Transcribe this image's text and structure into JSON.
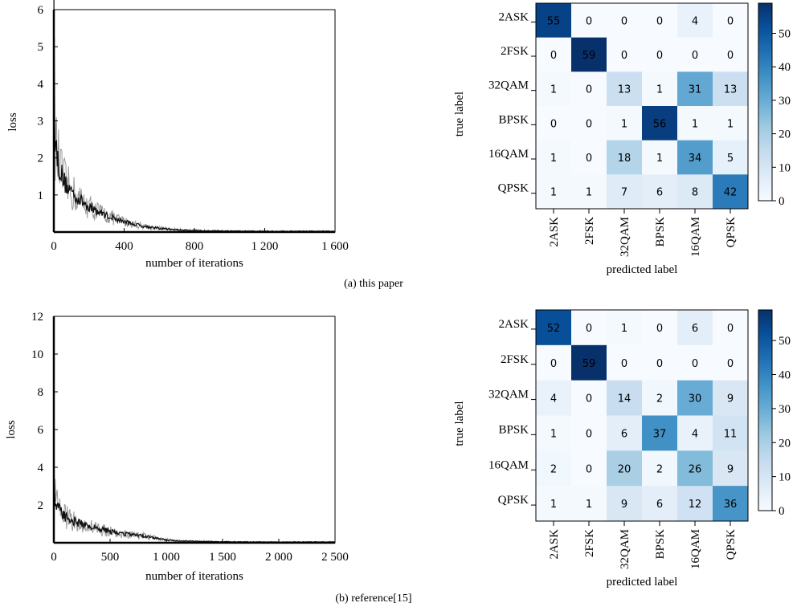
{
  "captions": {
    "a": "(a) this paper",
    "b": "(b) reference[15]"
  },
  "chart_data": [
    {
      "type": "line",
      "panel": "a-loss",
      "xlabel": "number of iterations",
      "ylabel": "loss",
      "xlim": [
        0,
        1600
      ],
      "ylim": [
        0,
        6
      ],
      "xticks": [
        0,
        400,
        800,
        1200,
        1600
      ],
      "xtick_labels": [
        "0",
        "400",
        "800",
        "1 200",
        "1 600"
      ],
      "yticks": [
        1,
        2,
        3,
        4,
        5,
        6
      ],
      "ytick_labels": [
        "1",
        "2",
        "3",
        "4",
        "5",
        "6"
      ],
      "grid": false,
      "series": [
        {
          "x": [
            0,
            2,
            5,
            10,
            20,
            40,
            60,
            80,
            100,
            150,
            200,
            250,
            300,
            350,
            400,
            450,
            500,
            550,
            600,
            650,
            700,
            750,
            800,
            900,
            1000,
            1100,
            1200,
            1300,
            1400,
            1500,
            1600
          ],
          "y": [
            6.0,
            4.6,
            3.0,
            2.4,
            2.0,
            1.6,
            1.35,
            1.2,
            1.1,
            0.85,
            0.7,
            0.55,
            0.45,
            0.36,
            0.28,
            0.22,
            0.17,
            0.13,
            0.1,
            0.08,
            0.06,
            0.05,
            0.04,
            0.03,
            0.025,
            0.02,
            0.02,
            0.02,
            0.02,
            0.02,
            0.02
          ]
        }
      ]
    },
    {
      "type": "heatmap",
      "panel": "a-confusion",
      "xlabel": "predicted label",
      "ylabel": "true label",
      "rows": [
        "2ASK",
        "2FSK",
        "32QAM",
        "BPSK",
        "16QAM",
        "QPSK"
      ],
      "cols": [
        "2ASK",
        "2FSK",
        "32QAM",
        "BPSK",
        "16QAM",
        "QPSK"
      ],
      "values": [
        [
          55,
          0,
          0,
          0,
          4,
          0
        ],
        [
          0,
          59,
          0,
          0,
          0,
          0
        ],
        [
          1,
          0,
          13,
          1,
          31,
          13
        ],
        [
          0,
          0,
          1,
          56,
          1,
          1
        ],
        [
          1,
          0,
          18,
          1,
          34,
          5
        ],
        [
          1,
          1,
          7,
          6,
          8,
          42
        ]
      ],
      "colorbar_ticks": [
        0,
        10,
        20,
        30,
        40,
        50
      ],
      "colorbar_range": [
        0,
        59
      ],
      "colormap": [
        "#f7fbff",
        "#deebf7",
        "#c6dbef",
        "#9ecae1",
        "#6baed6",
        "#4292c6",
        "#2171b5",
        "#08519c",
        "#08306b"
      ]
    },
    {
      "type": "line",
      "panel": "b-loss",
      "xlabel": "number of iterations",
      "ylabel": "loss",
      "xlim": [
        0,
        2500
      ],
      "ylim": [
        0,
        12
      ],
      "xticks": [
        0,
        500,
        1000,
        1500,
        2000,
        2500
      ],
      "xtick_labels": [
        "0",
        "500",
        "1 000",
        "1 500",
        "2 000",
        "2 500"
      ],
      "yticks": [
        2,
        4,
        6,
        8,
        10,
        12
      ],
      "ytick_labels": [
        "2",
        "4",
        "6",
        "8",
        "10",
        "12"
      ],
      "grid": false,
      "series": [
        {
          "x": [
            0,
            5,
            10,
            20,
            40,
            60,
            100,
            150,
            200,
            300,
            400,
            500,
            600,
            700,
            800,
            900,
            1000,
            1100,
            1200,
            1400,
            1600,
            1800,
            2000,
            2200,
            2500
          ],
          "y": [
            4.3,
            3.0,
            2.4,
            2.0,
            1.8,
            1.6,
            1.4,
            1.25,
            1.1,
            0.9,
            0.75,
            0.6,
            0.5,
            0.42,
            0.35,
            0.25,
            0.15,
            0.1,
            0.08,
            0.06,
            0.05,
            0.04,
            0.04,
            0.04,
            0.04
          ]
        }
      ]
    },
    {
      "type": "heatmap",
      "panel": "b-confusion",
      "xlabel": "predicted label",
      "ylabel": "true label",
      "rows": [
        "2ASK",
        "2FSK",
        "32QAM",
        "BPSK",
        "16QAM",
        "QPSK"
      ],
      "cols": [
        "2ASK",
        "2FSK",
        "32QAM",
        "BPSK",
        "16QAM",
        "QPSK"
      ],
      "values": [
        [
          52,
          0,
          1,
          0,
          6,
          0
        ],
        [
          0,
          59,
          0,
          0,
          0,
          0
        ],
        [
          4,
          0,
          14,
          2,
          30,
          9
        ],
        [
          1,
          0,
          6,
          37,
          4,
          11
        ],
        [
          2,
          0,
          20,
          2,
          26,
          9
        ],
        [
          1,
          1,
          9,
          6,
          12,
          36
        ]
      ],
      "colorbar_ticks": [
        0,
        10,
        20,
        30,
        40,
        50
      ],
      "colorbar_range": [
        0,
        59
      ],
      "colormap": [
        "#f7fbff",
        "#deebf7",
        "#c6dbef",
        "#9ecae1",
        "#6baed6",
        "#4292c6",
        "#2171b5",
        "#08519c",
        "#08306b"
      ]
    }
  ]
}
